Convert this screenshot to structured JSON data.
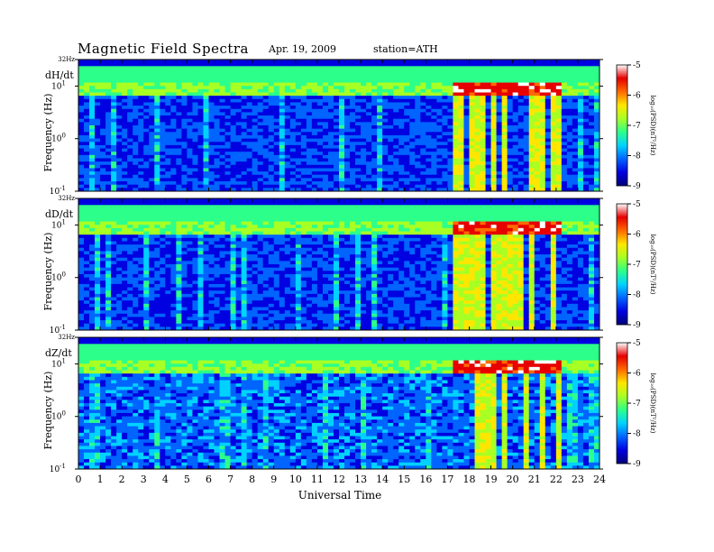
{
  "header": {
    "title": "Magnetic  Field  Spectra",
    "date": "Apr. 19, 2009",
    "station": "station=ATH"
  },
  "colors": {
    "colormap": [
      "#00007a",
      "#0000e0",
      "#0064ff",
      "#00d2ff",
      "#2cff8a",
      "#a8ff24",
      "#ffe600",
      "#ff6a00",
      "#e60000",
      "#ffffff"
    ]
  },
  "chart_data": {
    "type": "heatmap",
    "xlabel": "Universal Time",
    "x_ticks": [
      "0",
      "1",
      "2",
      "3",
      "4",
      "5",
      "6",
      "7",
      "8",
      "9",
      "10",
      "11",
      "12",
      "13",
      "14",
      "15",
      "16",
      "17",
      "18",
      "19",
      "20",
      "21",
      "22",
      "23",
      "24"
    ],
    "xlim": [
      0,
      24
    ],
    "y_scale": "log",
    "ylim": [
      0.1,
      32
    ],
    "ylabel": "Frequency  (Hz)",
    "y_ticks": [
      {
        "value": 32,
        "label": "32Hz"
      },
      {
        "value": 10,
        "label": "10",
        "exp": "1"
      },
      {
        "value": 1,
        "label": "10",
        "exp": "0"
      },
      {
        "value": 0.1,
        "label": "10",
        "exp": "-1"
      }
    ],
    "colorbar": {
      "label": "log₁₀(PSD)(nT²/Hz)",
      "ticks": [
        "-5",
        "-6",
        "-7",
        "-8",
        "-9"
      ],
      "range": [
        -9,
        -5
      ]
    },
    "panels": [
      {
        "component": "dH/dt",
        "background": -8.2,
        "active_interval": [
          17.3,
          22.3
        ]
      },
      {
        "component": "dD/dt",
        "background": -8.2,
        "active_interval": [
          17.3,
          22.3
        ]
      },
      {
        "component": "dZ/dt",
        "background": -8.0,
        "active_interval": [
          17.3,
          22.3
        ]
      }
    ]
  }
}
